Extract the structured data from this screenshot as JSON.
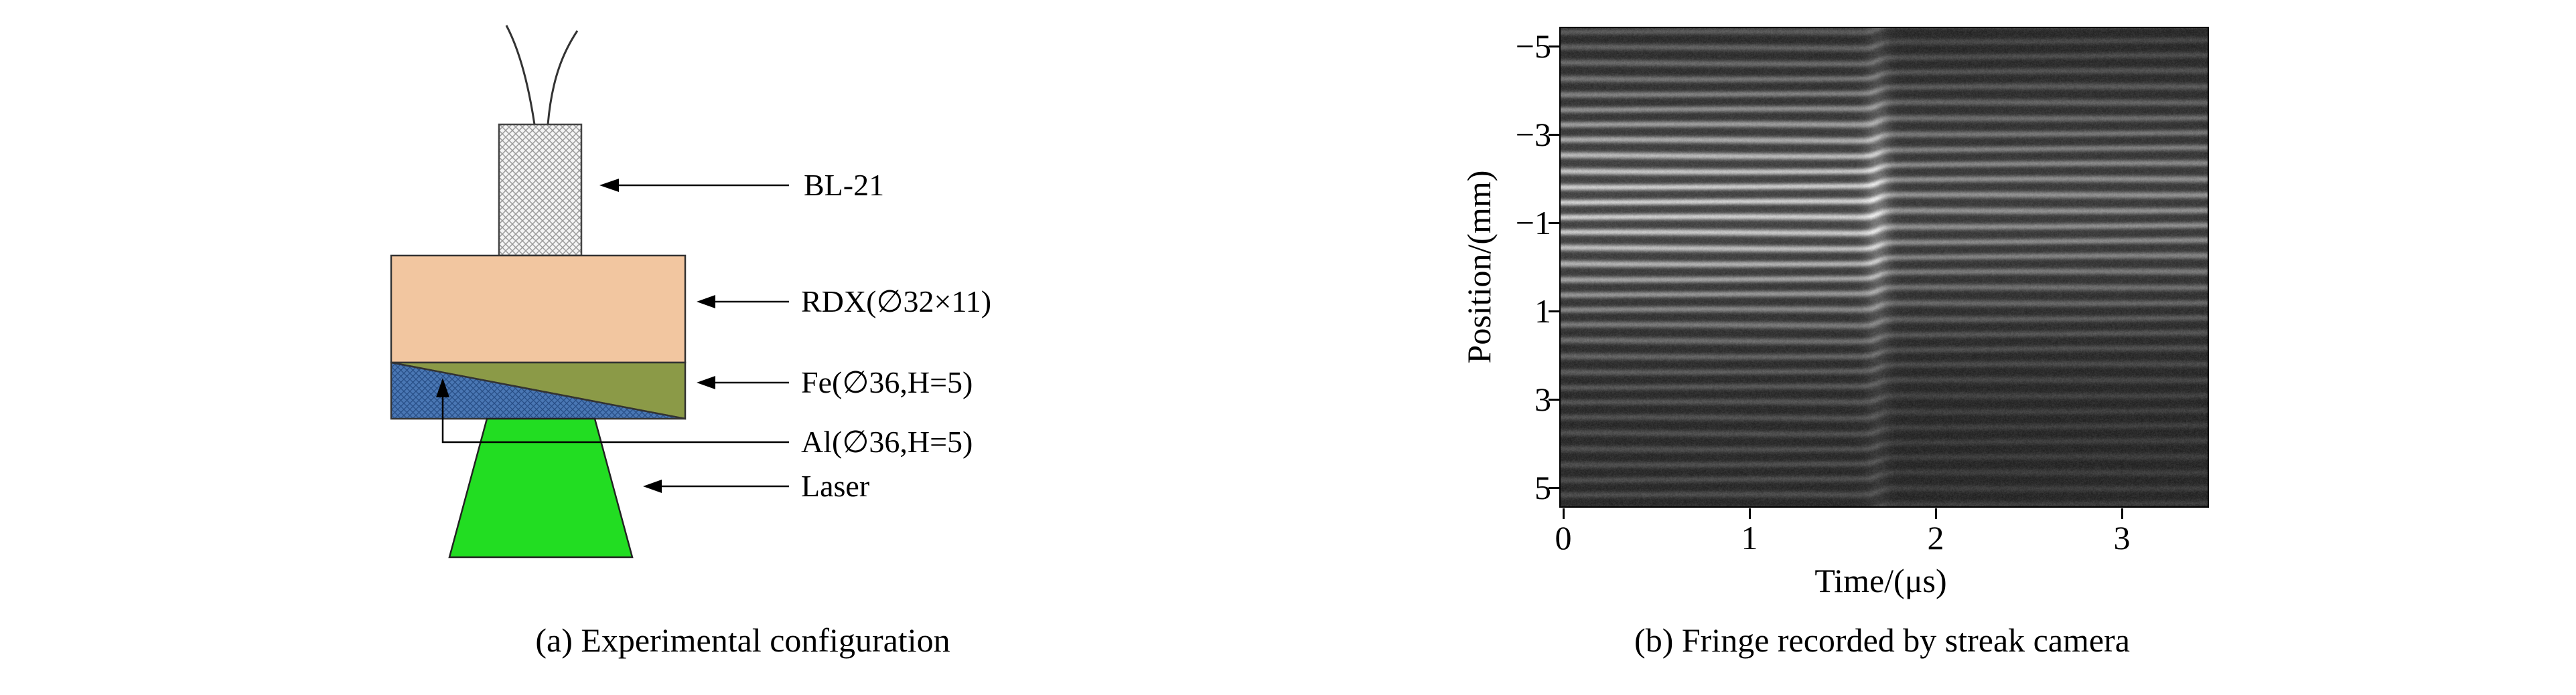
{
  "figure": {
    "panel_a": {
      "caption": "(a) Experimental configuration",
      "labels": {
        "detonator": "BL-21",
        "rdx": "RDX(∅32×11)",
        "fe": "Fe(∅36,H=5)",
        "al": "Al(∅36,H=5)",
        "laser": "Laser"
      },
      "colors": {
        "detonator_fill": "#f4f4f4",
        "rdx_fill": "#f2c6a0",
        "fe_fill": "#8b9a47",
        "al_fill": "#4a77b4",
        "laser_fill": "#22dd22"
      }
    },
    "panel_b": {
      "caption": "(b) Fringe recorded by streak camera",
      "y_axis": {
        "label": "Position/(mm)",
        "ticks": [
          "−5",
          "−3",
          "−1",
          "1",
          "3",
          "5"
        ]
      },
      "x_axis": {
        "label": "Time/(μs)",
        "ticks": [
          "0",
          "1",
          "2",
          "3"
        ]
      }
    }
  },
  "chart_data": {
    "type": "heatmap",
    "panel": "b",
    "xlabel": "Time/(μs)",
    "ylabel": "Position/(mm)",
    "x_ticks": [
      0,
      1,
      2,
      3
    ],
    "y_ticks": [
      -5,
      -3,
      -1,
      1,
      3,
      5
    ],
    "x_range": [
      0,
      3.5
    ],
    "y_range": [
      -5.4,
      5.4
    ],
    "content": "horizontal interference fringes with a phase jump near t ≈ 1.7 μs"
  }
}
